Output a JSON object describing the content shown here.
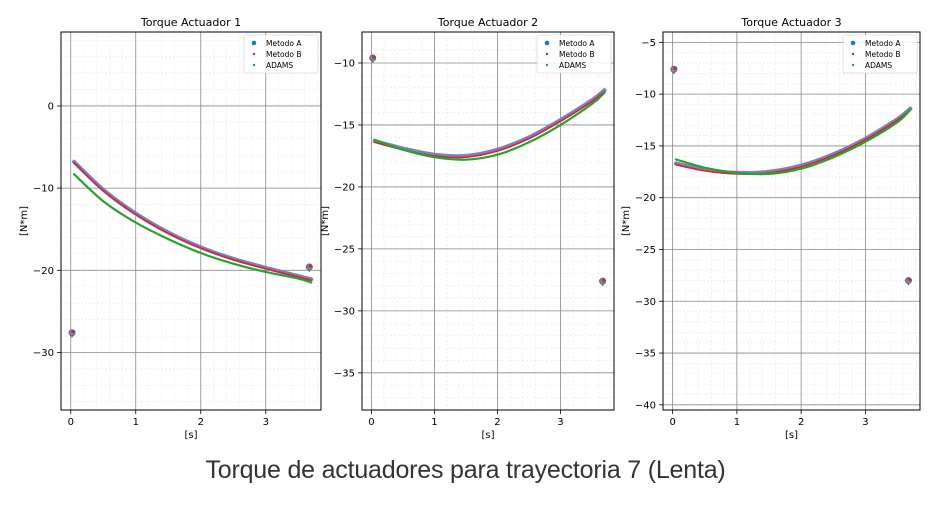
{
  "caption": "Torque de actuadores para trayectoria 7 (Lenta)",
  "colors": {
    "metodo_a": "#1f77b4",
    "metodo_b": "#d62728",
    "adams": "#2ca02c",
    "metodo_a_curve": "#7f7fbf"
  },
  "chart_data": [
    {
      "type": "line",
      "title": "Torque Actuador 1",
      "xlabel": "[s]",
      "ylabel": "[N*m]",
      "xlim": [
        -0.15,
        3.85
      ],
      "ylim": [
        -37,
        9
      ],
      "xticks": [
        0,
        1,
        2,
        3
      ],
      "yticks": [
        0,
        -10,
        -20,
        -30
      ],
      "grid": true,
      "legend_position": "top-right",
      "series": [
        {
          "name": "Metodo A",
          "x": [
            0.05,
            0.5,
            1,
            1.5,
            2,
            2.5,
            3,
            3.5,
            3.7
          ],
          "y": [
            -6.8,
            -10.2,
            -13.1,
            -15.4,
            -17.2,
            -18.6,
            -19.7,
            -20.7,
            -21.1
          ]
        },
        {
          "name": "Metodo B",
          "x": [
            0.05,
            0.5,
            1,
            1.5,
            2,
            2.5,
            3,
            3.5,
            3.7
          ],
          "y": [
            -6.9,
            -10.3,
            -13.2,
            -15.5,
            -17.3,
            -18.7,
            -19.8,
            -20.8,
            -21.2
          ]
        },
        {
          "name": "ADAMS",
          "x": [
            0.05,
            0.5,
            1,
            1.5,
            2,
            2.5,
            3,
            3.5,
            3.7
          ],
          "y": [
            -8.3,
            -11.6,
            -14.2,
            -16.2,
            -17.9,
            -19.2,
            -20.2,
            -21.0,
            -21.5
          ]
        }
      ],
      "outliers": [
        {
          "x": 0.02,
          "y": -27.6
        },
        {
          "x": 3.67,
          "y": -19.6
        }
      ]
    },
    {
      "type": "line",
      "title": "Torque Actuador 2",
      "xlabel": "[s]",
      "ylabel": "[N*m]",
      "xlim": [
        -0.15,
        3.85
      ],
      "ylim": [
        -38,
        -7.5
      ],
      "xticks": [
        0,
        1,
        2,
        3
      ],
      "yticks": [
        -10,
        -15,
        -20,
        -25,
        -30,
        -35
      ],
      "grid": true,
      "legend_position": "top-right",
      "series": [
        {
          "name": "Metodo A",
          "x": [
            0.05,
            0.5,
            1,
            1.5,
            2,
            2.5,
            3,
            3.5,
            3.7
          ],
          "y": [
            -16.3,
            -16.9,
            -17.4,
            -17.5,
            -17.0,
            -16.0,
            -14.6,
            -13.0,
            -12.2
          ]
        },
        {
          "name": "Metodo B",
          "x": [
            0.05,
            0.5,
            1,
            1.5,
            2,
            2.5,
            3,
            3.5,
            3.7
          ],
          "y": [
            -16.4,
            -17.0,
            -17.5,
            -17.6,
            -17.1,
            -16.1,
            -14.7,
            -13.1,
            -12.3
          ]
        },
        {
          "name": "ADAMS",
          "x": [
            0.05,
            0.5,
            1,
            1.5,
            2,
            2.5,
            3,
            3.5,
            3.7
          ],
          "y": [
            -16.2,
            -17.0,
            -17.6,
            -17.8,
            -17.4,
            -16.4,
            -15.0,
            -13.3,
            -12.4
          ]
        }
      ],
      "outliers": [
        {
          "x": 0.02,
          "y": -9.6
        },
        {
          "x": 3.67,
          "y": -27.6
        }
      ]
    },
    {
      "type": "line",
      "title": "Torque Actuador 3",
      "xlabel": "[s]",
      "ylabel": "[N*m]",
      "xlim": [
        -0.15,
        3.85
      ],
      "ylim": [
        -40.5,
        -4
      ],
      "xticks": [
        0,
        1,
        2,
        3
      ],
      "yticks": [
        -5,
        -10,
        -15,
        -20,
        -25,
        -30,
        -35,
        -40
      ],
      "grid": true,
      "legend_position": "top-right",
      "series": [
        {
          "name": "Metodo A",
          "x": [
            0.05,
            0.5,
            1,
            1.5,
            2,
            2.5,
            3,
            3.5,
            3.7
          ],
          "y": [
            -16.7,
            -17.3,
            -17.6,
            -17.5,
            -16.9,
            -15.8,
            -14.3,
            -12.4,
            -11.4
          ]
        },
        {
          "name": "Metodo B",
          "x": [
            0.05,
            0.5,
            1,
            1.5,
            2,
            2.5,
            3,
            3.5,
            3.7
          ],
          "y": [
            -16.8,
            -17.4,
            -17.7,
            -17.6,
            -17.0,
            -15.9,
            -14.4,
            -12.5,
            -11.5
          ]
        },
        {
          "name": "ADAMS",
          "x": [
            0.05,
            0.5,
            1,
            1.5,
            2,
            2.5,
            3,
            3.5,
            3.7
          ],
          "y": [
            -16.3,
            -17.1,
            -17.6,
            -17.7,
            -17.2,
            -16.1,
            -14.6,
            -12.7,
            -11.5
          ]
        }
      ],
      "outliers": [
        {
          "x": 0.02,
          "y": -7.6
        },
        {
          "x": 3.67,
          "y": -28.0
        }
      ]
    }
  ]
}
